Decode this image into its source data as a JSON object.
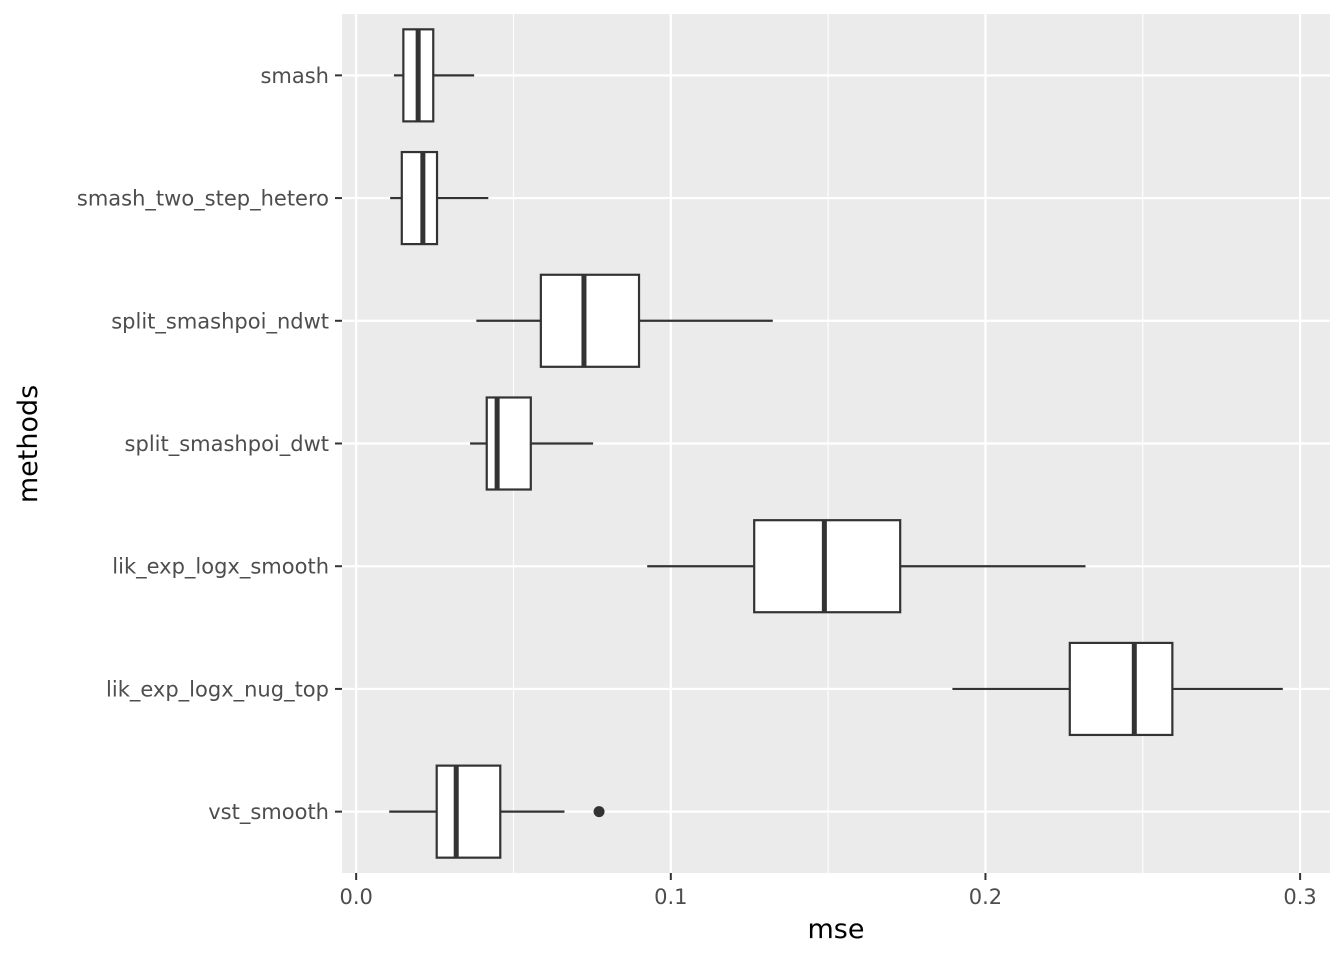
{
  "chart_data": {
    "type": "boxplot",
    "orientation": "horizontal",
    "title": "",
    "xlabel": "mse",
    "ylabel": "methods",
    "xlim": [
      -0.0045,
      0.3095
    ],
    "x_ticks": [
      0.0,
      0.1,
      0.2,
      0.3
    ],
    "x_tick_labels": [
      "0.0",
      "0.1",
      "0.2",
      "0.3"
    ],
    "grid": true,
    "legend": "none",
    "colors": {
      "panel_background": "#ebebeb",
      "grid_major": "#ffffff",
      "grid_minor": "#f5f5f5",
      "box_fill": "#ffffff",
      "box_stroke": "#333333",
      "tick_color": "#333333"
    },
    "categories": [
      "smash",
      "smash_two_step_hetero",
      "split_smashpoi_ndwt",
      "split_smashpoi_dwt",
      "lik_exp_logx_smooth",
      "lik_exp_logx_nug_top",
      "vst_smooth"
    ],
    "series": [
      {
        "name": "smash",
        "whisker_low": 0.012,
        "q1": 0.015,
        "median": 0.0197,
        "q3": 0.0245,
        "whisker_high": 0.0375,
        "outliers": []
      },
      {
        "name": "smash_two_step_hetero",
        "whisker_low": 0.0108,
        "q1": 0.0145,
        "median": 0.0212,
        "q3": 0.0257,
        "whisker_high": 0.042,
        "outliers": []
      },
      {
        "name": "split_smashpoi_ndwt",
        "whisker_low": 0.0382,
        "q1": 0.0587,
        "median": 0.0724,
        "q3": 0.0899,
        "whisker_high": 0.1324,
        "outliers": []
      },
      {
        "name": "split_smashpoi_dwt",
        "whisker_low": 0.0362,
        "q1": 0.0415,
        "median": 0.0448,
        "q3": 0.0555,
        "whisker_high": 0.0753,
        "outliers": []
      },
      {
        "name": "lik_exp_logx_smooth",
        "whisker_low": 0.0925,
        "q1": 0.1265,
        "median": 0.1488,
        "q3": 0.1729,
        "whisker_high": 0.2318,
        "outliers": []
      },
      {
        "name": "lik_exp_logx_nug_top",
        "whisker_low": 0.1895,
        "q1": 0.2268,
        "median": 0.2473,
        "q3": 0.2594,
        "whisker_high": 0.2945,
        "outliers": []
      },
      {
        "name": "vst_smooth",
        "whisker_low": 0.0105,
        "q1": 0.0256,
        "median": 0.0318,
        "q3": 0.0458,
        "whisker_high": 0.0662,
        "outliers": [
          0.0772
        ]
      }
    ]
  }
}
